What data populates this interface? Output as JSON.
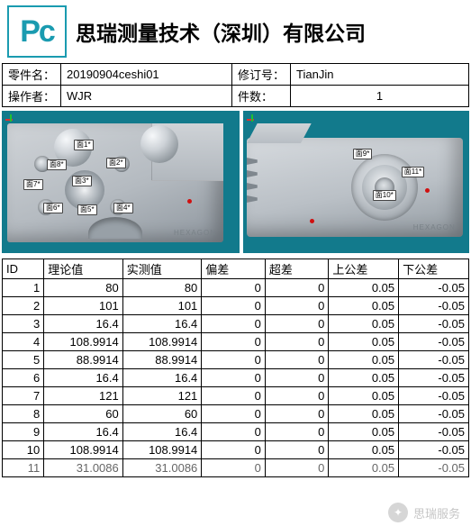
{
  "header": {
    "logo_text": "Pc",
    "company": "思瑞测量技术（深圳）有限公司"
  },
  "meta": {
    "part_name_label": "零件名：",
    "part_name": "20190904ceshi01",
    "revision_label": "修订号：",
    "revision": "TianJin",
    "operator_label": "操作者：",
    "operator": "WJR",
    "count_label": "件数：",
    "count": "1"
  },
  "viewport": {
    "bg_color": "#127a8c",
    "tags_left": [
      "面1*",
      "面8*",
      "面2*",
      "面7*",
      "面3*",
      "面6*",
      "面5*",
      "面4*"
    ],
    "tags_right": [
      "面9*",
      "面11*",
      "面10*"
    ],
    "brand_left": "HEXAGON",
    "brand_right": "HEXAGON"
  },
  "table": {
    "columns": [
      "ID",
      "理论值",
      "实测值",
      "偏差",
      "超差",
      "上公差",
      "下公差"
    ],
    "col_widths": [
      "38px",
      "72px",
      "72px",
      "58px",
      "58px",
      "64px",
      "64px"
    ],
    "col_align": [
      "right",
      "right",
      "right",
      "right",
      "right",
      "right",
      "right"
    ],
    "rows": [
      [
        "1",
        "80",
        "80",
        "0",
        "0",
        "0.05",
        "-0.05"
      ],
      [
        "2",
        "101",
        "101",
        "0",
        "0",
        "0.05",
        "-0.05"
      ],
      [
        "3",
        "16.4",
        "16.4",
        "0",
        "0",
        "0.05",
        "-0.05"
      ],
      [
        "4",
        "108.9914",
        "108.9914",
        "0",
        "0",
        "0.05",
        "-0.05"
      ],
      [
        "5",
        "88.9914",
        "88.9914",
        "0",
        "0",
        "0.05",
        "-0.05"
      ],
      [
        "6",
        "16.4",
        "16.4",
        "0",
        "0",
        "0.05",
        "-0.05"
      ],
      [
        "7",
        "121",
        "121",
        "0",
        "0",
        "0.05",
        "-0.05"
      ],
      [
        "8",
        "60",
        "60",
        "0",
        "0",
        "0.05",
        "-0.05"
      ],
      [
        "9",
        "16.4",
        "16.4",
        "0",
        "0",
        "0.05",
        "-0.05"
      ],
      [
        "10",
        "108.9914",
        "108.9914",
        "0",
        "0",
        "0.05",
        "-0.05"
      ],
      [
        "11",
        "31.0086",
        "31.0086",
        "0",
        "0",
        "0.05",
        "-0.05"
      ]
    ]
  },
  "watermark": {
    "text": "思瑞服务"
  }
}
